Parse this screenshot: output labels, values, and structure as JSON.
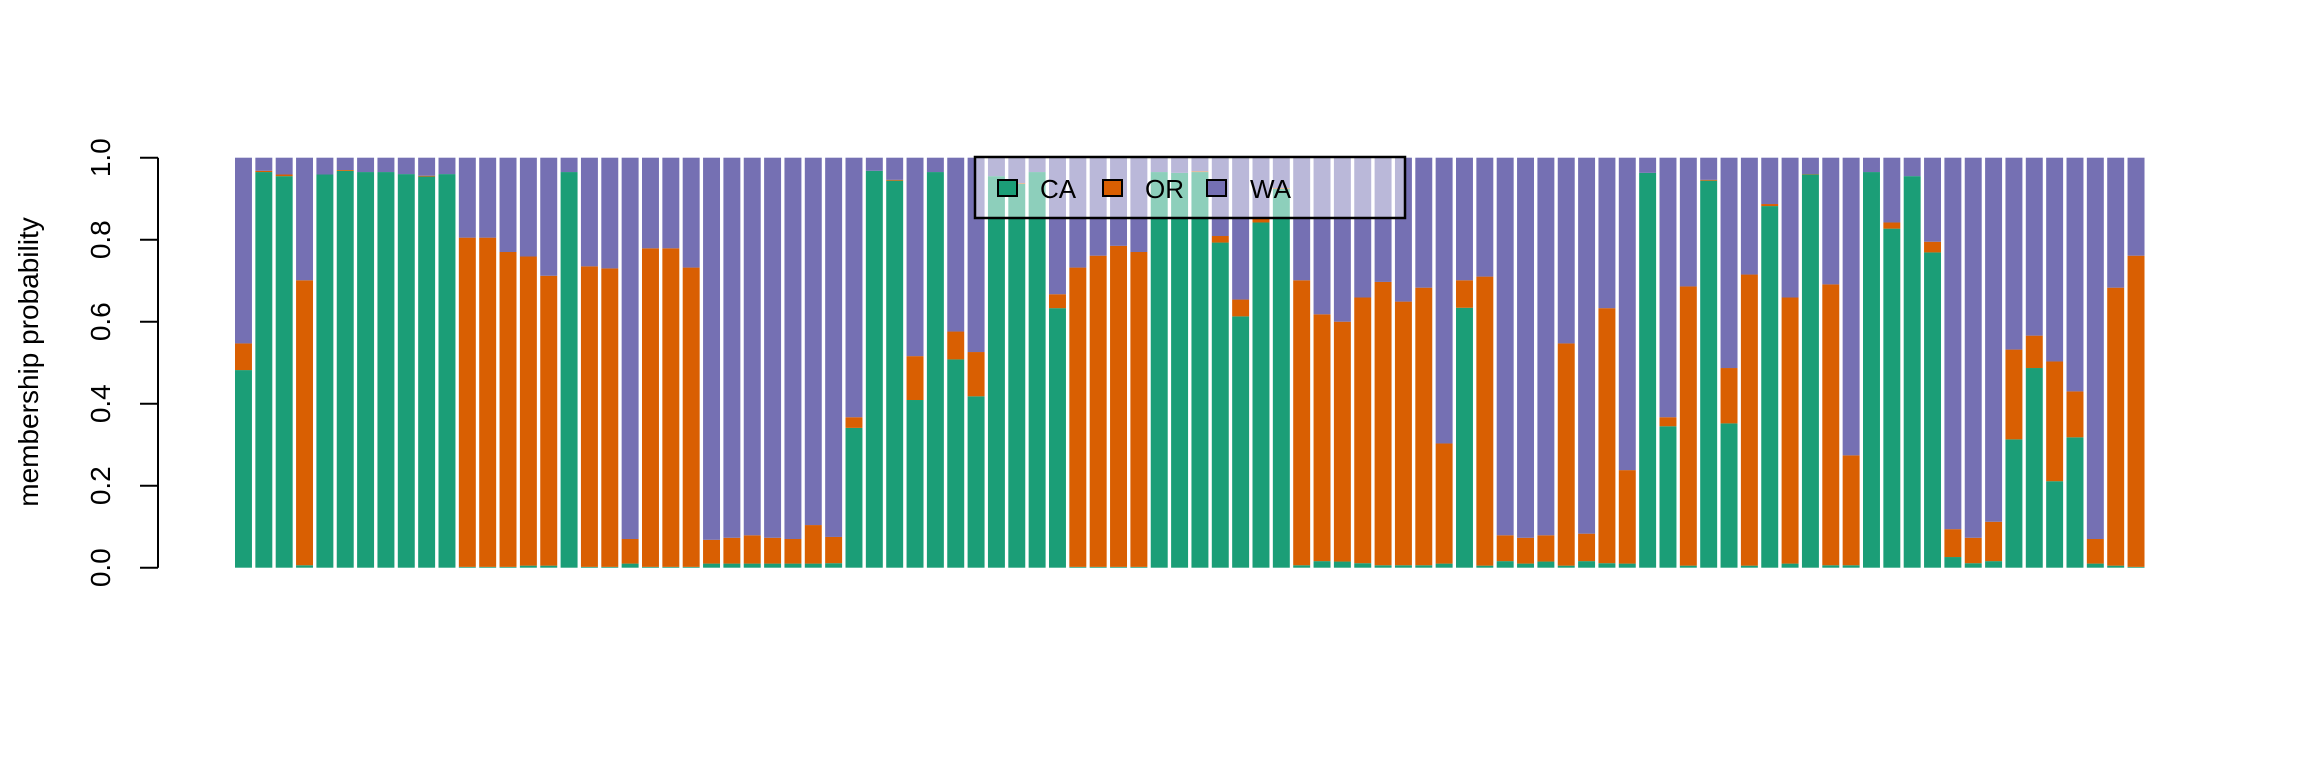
{
  "chart_data": {
    "type": "bar",
    "stacked": true,
    "title": "",
    "xlabel": "",
    "ylabel": "membership probability",
    "ylim": [
      0,
      1
    ],
    "yticks": [
      "0.0",
      "0.2",
      "0.4",
      "0.6",
      "0.8",
      "1.0"
    ],
    "ytick_values": [
      0,
      0.2,
      0.4,
      0.6,
      0.8,
      1.0
    ],
    "grid": false,
    "legend_position": "top-center",
    "n_bars": 94,
    "series": [
      {
        "name": "CA",
        "color": "#1B9E77",
        "values": [
          0.482,
          0.965,
          0.955,
          0.006,
          0.959,
          0.968,
          0.965,
          0.965,
          0.96,
          0.954,
          0.96,
          0.002,
          0.002,
          0.002,
          0.005,
          0.005,
          0.965,
          0.002,
          0.002,
          0.01,
          0.002,
          0.002,
          0.002,
          0.01,
          0.01,
          0.01,
          0.01,
          0.01,
          0.01,
          0.011,
          0.341,
          0.968,
          0.944,
          0.409,
          0.965,
          0.508,
          0.418,
          0.955,
          0.936,
          0.965,
          0.633,
          0.002,
          0.002,
          0.002,
          0.002,
          0.965,
          0.963,
          0.965,
          0.793,
          0.613,
          0.842,
          0.924,
          0.006,
          0.016,
          0.015,
          0.011,
          0.006,
          0.006,
          0.006,
          0.01,
          0.634,
          0.005,
          0.016,
          0.01,
          0.015,
          0.005,
          0.016,
          0.011,
          0.01,
          0.963,
          0.345,
          0.005,
          0.944,
          0.352,
          0.005,
          0.882,
          0.01,
          0.959,
          0.006,
          0.006,
          0.965,
          0.827,
          0.955,
          0.769,
          0.026,
          0.011,
          0.016,
          0.313,
          0.487,
          0.211,
          0.318,
          0.01,
          0.005,
          0.002
        ]
      },
      {
        "name": "OR",
        "color": "#D95F02",
        "values": [
          0.065,
          0.003,
          0.004,
          0.695,
          0.0,
          0.002,
          0.0,
          0.0,
          0.0,
          0.002,
          0.0,
          0.803,
          0.803,
          0.768,
          0.754,
          0.707,
          0.0,
          0.733,
          0.728,
          0.06,
          0.777,
          0.777,
          0.73,
          0.058,
          0.063,
          0.069,
          0.063,
          0.06,
          0.094,
          0.064,
          0.026,
          0.0,
          0.002,
          0.107,
          0.0,
          0.068,
          0.108,
          0.0,
          0.002,
          0.0,
          0.034,
          0.73,
          0.759,
          0.783,
          0.768,
          0.0,
          0.0,
          0.002,
          0.016,
          0.041,
          0.01,
          0.002,
          0.695,
          0.602,
          0.585,
          0.648,
          0.691,
          0.643,
          0.677,
          0.293,
          0.067,
          0.705,
          0.063,
          0.063,
          0.064,
          0.542,
          0.067,
          0.622,
          0.228,
          0.0,
          0.022,
          0.681,
          0.002,
          0.135,
          0.71,
          0.005,
          0.649,
          0.001,
          0.685,
          0.268,
          0.0,
          0.015,
          0.0,
          0.026,
          0.068,
          0.062,
          0.096,
          0.219,
          0.079,
          0.292,
          0.112,
          0.06,
          0.678,
          0.759
        ]
      },
      {
        "name": "WA",
        "color": "#7570B3",
        "values": [
          0.453,
          0.032,
          0.041,
          0.299,
          0.041,
          0.03,
          0.035,
          0.035,
          0.04,
          0.044,
          0.04,
          0.195,
          0.195,
          0.23,
          0.241,
          0.288,
          0.035,
          0.265,
          0.27,
          0.93,
          0.221,
          0.221,
          0.268,
          0.932,
          0.927,
          0.921,
          0.927,
          0.93,
          0.896,
          0.925,
          0.633,
          0.032,
          0.054,
          0.484,
          0.035,
          0.424,
          0.474,
          0.045,
          0.062,
          0.035,
          0.333,
          0.268,
          0.239,
          0.215,
          0.23,
          0.035,
          0.037,
          0.033,
          0.191,
          0.346,
          0.148,
          0.074,
          0.299,
          0.382,
          0.4,
          0.341,
          0.303,
          0.351,
          0.317,
          0.697,
          0.299,
          0.29,
          0.921,
          0.927,
          0.921,
          0.453,
          0.917,
          0.367,
          0.762,
          0.037,
          0.633,
          0.314,
          0.054,
          0.513,
          0.285,
          0.113,
          0.341,
          0.04,
          0.309,
          0.726,
          0.035,
          0.158,
          0.045,
          0.205,
          0.906,
          0.927,
          0.888,
          0.468,
          0.434,
          0.497,
          0.57,
          0.93,
          0.317,
          0.239
        ]
      }
    ]
  }
}
